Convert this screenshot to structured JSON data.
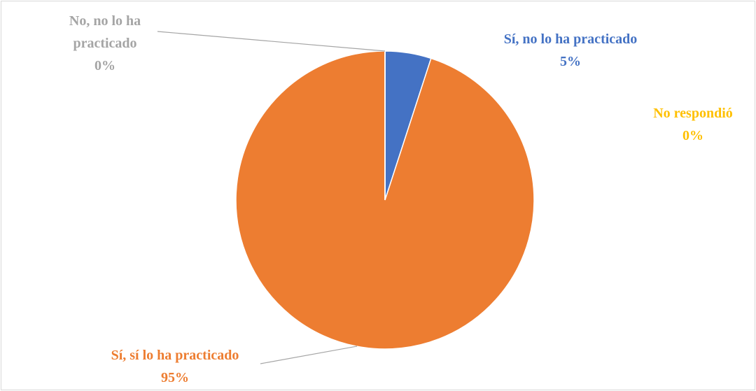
{
  "chart_data": {
    "type": "pie",
    "categories": [
      "Sí, no lo ha practicado",
      "Sí, sí lo ha practicado",
      "No, no lo ha practicado",
      "No respondió"
    ],
    "values": [
      5,
      95,
      0,
      0
    ],
    "value_labels": [
      "5%",
      "95%",
      "0%",
      "0%"
    ],
    "colors": [
      "#4472c4",
      "#ed7d31",
      "#a5a5a5",
      "#ffc000"
    ]
  }
}
